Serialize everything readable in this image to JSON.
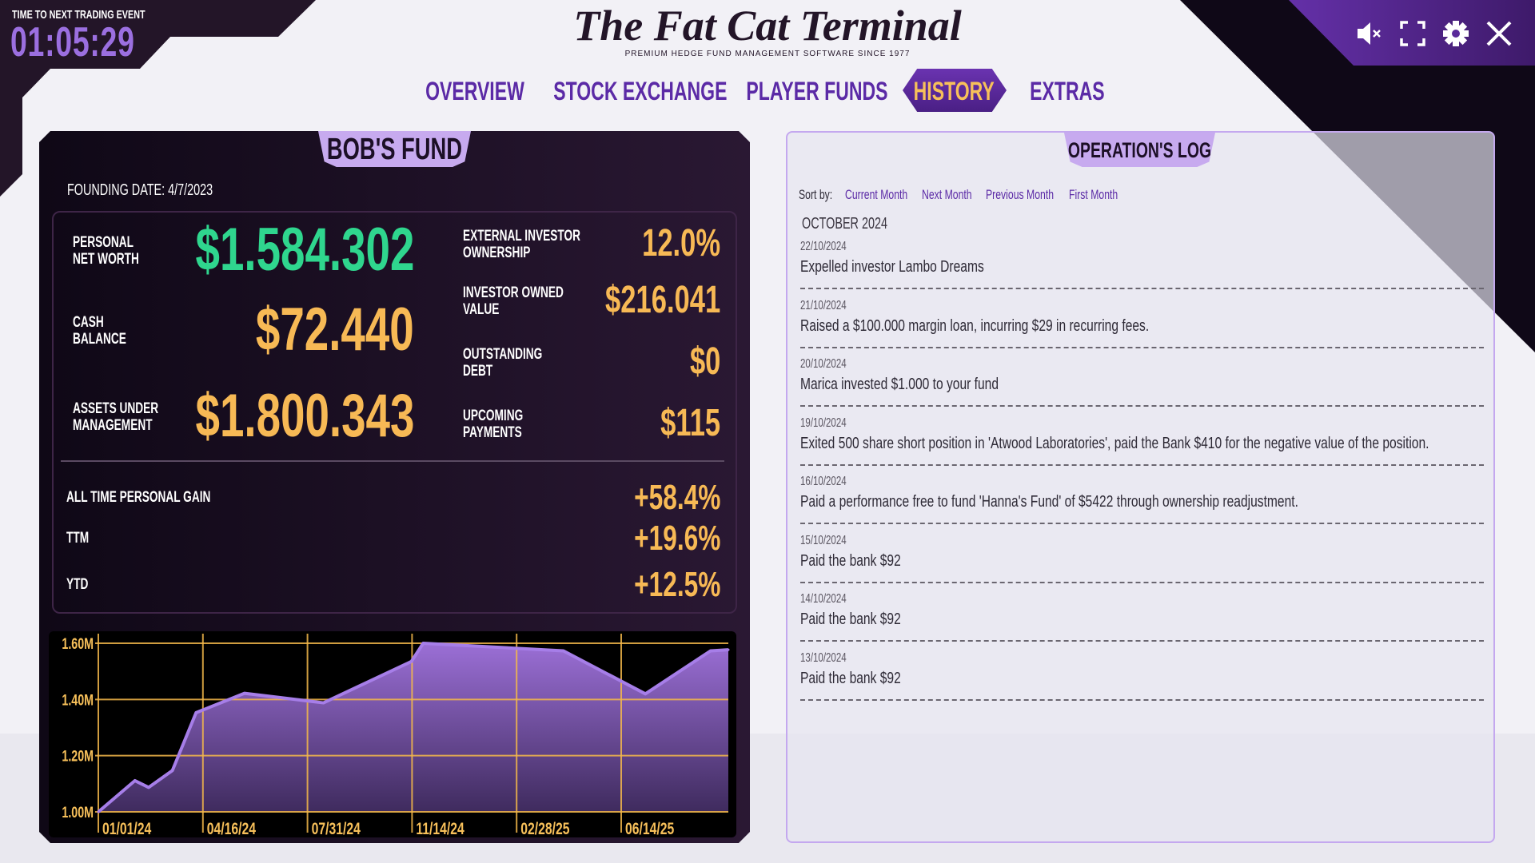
{
  "header": {
    "timer_label": "TIME TO NEXT TRADING EVENT",
    "timer": "01:05:29",
    "logo": "The Fat Cat Terminal",
    "tagline": "PREMIUM HEDGE FUND MANAGEMENT SOFTWARE SINCE 1977"
  },
  "nav": [
    {
      "label": "OVERVIEW",
      "active": false
    },
    {
      "label": "STOCK EXCHANGE",
      "active": false
    },
    {
      "label": "PLAYER FUNDS",
      "active": false
    },
    {
      "label": "HISTORY",
      "active": true
    },
    {
      "label": "EXTRAS",
      "active": false
    }
  ],
  "icons": [
    "mute-icon",
    "fullscreen-icon",
    "gear-icon",
    "close-icon"
  ],
  "fund": {
    "title": "BOB'S FUND",
    "founding": "FOUNDING DATE: 4/7/2023",
    "left": [
      {
        "l1": "PERSONAL",
        "l2": "NET WORTH",
        "value": "$1.584.302",
        "color": "#2fd68e"
      },
      {
        "l1": "CASH",
        "l2": "BALANCE",
        "value": "$72.440",
        "color": "#f7b955"
      },
      {
        "l1": "ASSETS UNDER",
        "l2": "MANAGEMENT",
        "value": "$1.800.343",
        "color": "#f7b955"
      }
    ],
    "right": [
      {
        "l1": "EXTERNAL INVESTOR",
        "l2": "OWNERSHIP",
        "value": "12.0%"
      },
      {
        "l1": "INVESTOR OWNED",
        "l2": "VALUE",
        "value": "$216.041"
      },
      {
        "l1": "OUTSTANDING",
        "l2": "DEBT",
        "value": "$0"
      },
      {
        "l1": "UPCOMING",
        "l2": "PAYMENTS",
        "value": "$115"
      }
    ],
    "gains": [
      {
        "label": "ALL TIME PERSONAL GAIN",
        "value": "+58.4%"
      },
      {
        "label": "TTM",
        "value": "+19.6%"
      },
      {
        "label": "YTD",
        "value": "+12.5%"
      }
    ]
  },
  "chart_data": {
    "type": "area",
    "x": [
      "2024-01-01",
      "2024-02-07",
      "2024-02-21",
      "2024-03-16",
      "2024-04-09",
      "2024-05-28",
      "2024-08-16",
      "2024-11-13",
      "2024-11-25",
      "2025-04-16",
      "2025-07-08",
      "2025-09-12",
      "2025-09-30"
    ],
    "values": [
      1000000,
      1111000,
      1087000,
      1147000,
      1353000,
      1422000,
      1388000,
      1535000,
      1600000,
      1573000,
      1420000,
      1573000,
      1577000
    ],
    "xlim": [
      "2024-01-01",
      "2025-09-30"
    ],
    "ylim": [
      1000000,
      1600000
    ],
    "yticks": [
      "1.00M",
      "1.20M",
      "1.40M",
      "1.60M"
    ],
    "xticks": [
      "01/01/24",
      "04/16/24",
      "07/31/24",
      "11/14/24",
      "02/28/25",
      "06/14/25"
    ],
    "grid": true,
    "colors": {
      "fill_top": "#9b6fd6",
      "fill_bottom": "#3f2b5e",
      "line": "#a67ee8",
      "grid": "#f5b94a",
      "labels": "#f7c05a"
    }
  },
  "log": {
    "title": "OPERATION'S LOG",
    "sort_label": "Sort by:",
    "sort_options": [
      "Current Month",
      "Next Month",
      "Previous Month",
      "First Month"
    ],
    "month": "OCTOBER 2024",
    "entries": [
      {
        "date": "22/10/2024",
        "text": "Expelled investor Lambo Dreams"
      },
      {
        "date": "21/10/2024",
        "text": "Raised a $100.000 margin loan, incurring $29 in recurring fees."
      },
      {
        "date": "20/10/2024",
        "text": "Marica invested $1.000 to your fund"
      },
      {
        "date": "19/10/2024",
        "text": "Exited 500 share short position in 'Atwood Laboratories', paid the Bank $410 for the negative value of the position."
      },
      {
        "date": "16/10/2024",
        "text": "Paid a performance free to fund 'Hanna's Fund' of $5422 through ownership readjustment."
      },
      {
        "date": "15/10/2024",
        "text": "Paid the bank $92"
      },
      {
        "date": "14/10/2024",
        "text": "Paid the bank $92"
      },
      {
        "date": "13/10/2024",
        "text": "Paid the bank $92"
      }
    ]
  }
}
